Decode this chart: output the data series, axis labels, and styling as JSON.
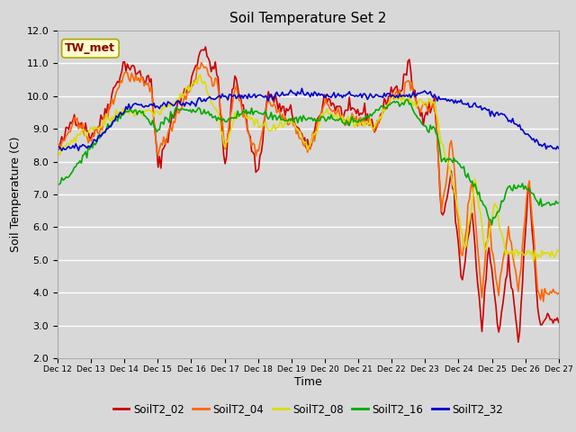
{
  "title": "Soil Temperature Set 2",
  "xlabel": "Time",
  "ylabel": "Soil Temperature (C)",
  "ylim": [
    2.0,
    12.0
  ],
  "yticks": [
    2.0,
    3.0,
    4.0,
    5.0,
    6.0,
    7.0,
    8.0,
    9.0,
    10.0,
    11.0,
    12.0
  ],
  "xtick_labels": [
    "Dec 12",
    "Dec 13",
    "Dec 14",
    "Dec 15",
    "Dec 16",
    "Dec 17",
    "Dec 18",
    "Dec 19",
    "Dec 20",
    "Dec 21",
    "Dec 22",
    "Dec 23",
    "Dec 24",
    "Dec 25",
    "Dec 26",
    "Dec 27"
  ],
  "colors": {
    "SoilT2_02": "#cc0000",
    "SoilT2_04": "#ff6600",
    "SoilT2_08": "#dddd00",
    "SoilT2_16": "#00aa00",
    "SoilT2_32": "#0000cc"
  },
  "legend_label": "TW_met",
  "legend_box_facecolor": "#ffffcc",
  "legend_text_color": "#880000",
  "legend_box_edgecolor": "#aaaa00",
  "background_color": "#d8d8d8",
  "plot_bg_color": "#d8d8d8",
  "gridcolor": "#ffffff",
  "linewidth": 1.2,
  "n_points": 360,
  "figsize": [
    6.4,
    4.8
  ],
  "dpi": 100
}
